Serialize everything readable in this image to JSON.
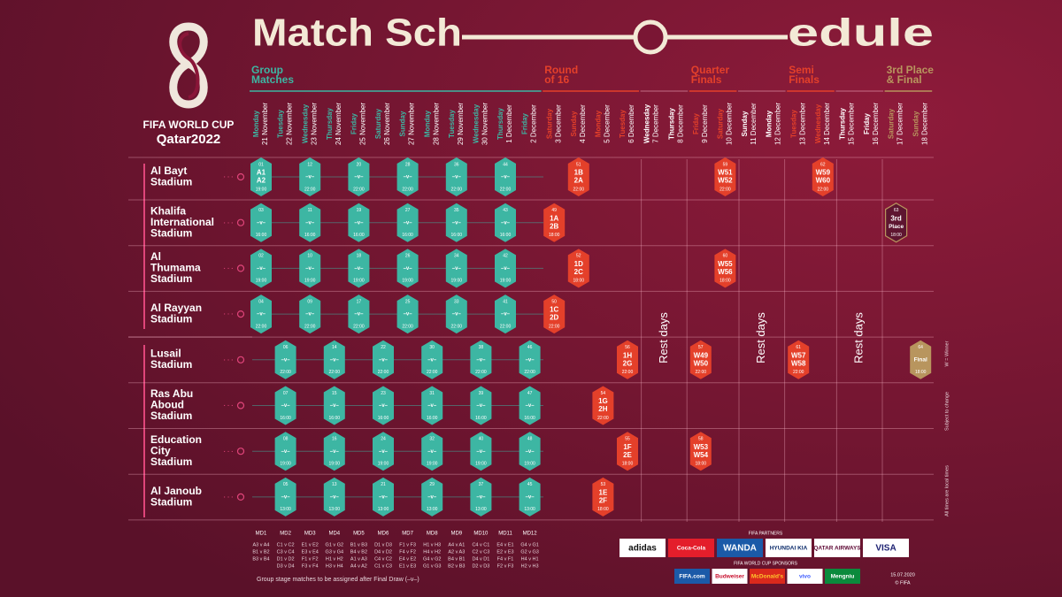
{
  "header": {
    "title_left": "Match Sch",
    "title_right": "edule",
    "logo_top": "FIFA WORLD CUP",
    "logo_bottom": "Qatar2022"
  },
  "stages": [
    {
      "name": [
        "Group",
        "Matches"
      ],
      "color": "#3db6a3",
      "days": [
        {
          "weekday": "Monday",
          "date": "21 November"
        },
        {
          "weekday": "Tuesday",
          "date": "22 November"
        },
        {
          "weekday": "Wednesday",
          "date": "23 November"
        },
        {
          "weekday": "Thursday",
          "date": "24 November"
        },
        {
          "weekday": "Friday",
          "date": "25 November"
        },
        {
          "weekday": "Saturday",
          "date": "26 November"
        },
        {
          "weekday": "Sunday",
          "date": "27 November"
        },
        {
          "weekday": "Monday",
          "date": "28 November"
        },
        {
          "weekday": "Tuesday",
          "date": "29 November"
        },
        {
          "weekday": "Wednesday",
          "date": "30 November"
        },
        {
          "weekday": "Thursday",
          "date": "1 December"
        },
        {
          "weekday": "Friday",
          "date": "2 December"
        }
      ]
    },
    {
      "name": [
        "Round",
        "of 16"
      ],
      "color": "#e4402a",
      "days": [
        {
          "weekday": "Saturday",
          "date": "3 December"
        },
        {
          "weekday": "Sunday",
          "date": "4 December"
        },
        {
          "weekday": "Monday",
          "date": "5 December"
        },
        {
          "weekday": "Tuesday",
          "date": "6 December"
        }
      ]
    },
    {
      "rest": "Rest days",
      "days": [
        {
          "weekday": "Wednesday",
          "date": "7 December"
        },
        {
          "weekday": "Thursday",
          "date": "8 December"
        }
      ]
    },
    {
      "name": [
        "Quarter",
        "Finals"
      ],
      "color": "#e4402a",
      "days": [
        {
          "weekday": "Friday",
          "date": "9 December"
        },
        {
          "weekday": "Saturday",
          "date": "10 December"
        }
      ]
    },
    {
      "rest": "Rest days",
      "days": [
        {
          "weekday": "Sunday",
          "date": "11 December"
        },
        {
          "weekday": "Monday",
          "date": "12 December"
        }
      ]
    },
    {
      "name": [
        "Semi",
        "Finals"
      ],
      "color": "#e4402a",
      "days": [
        {
          "weekday": "Tuesday",
          "date": "13 December"
        },
        {
          "weekday": "Wednesday",
          "date": "14 December"
        }
      ]
    },
    {
      "rest": "Rest days",
      "days": [
        {
          "weekday": "Thursday",
          "date": "15 December"
        },
        {
          "weekday": "Friday",
          "date": "16 December"
        }
      ]
    },
    {
      "name": [
        "3rd Place",
        "& Final"
      ],
      "color": "#b8955e",
      "days": [
        {
          "weekday": "Saturday",
          "date": "17 December"
        },
        {
          "weekday": "Sunday",
          "date": "18 December"
        }
      ]
    }
  ],
  "stadiums": [
    {
      "name": [
        "Al Bayt",
        "Stadium"
      ],
      "matches": [
        {
          "no": "01",
          "lines": [
            "A1",
            "A2"
          ],
          "time": "19:00"
        },
        null,
        {
          "no": "12",
          "lines": [
            "–v–"
          ],
          "time": "22:00"
        },
        null,
        {
          "no": "20",
          "lines": [
            "–v–"
          ],
          "time": "22:00"
        },
        null,
        {
          "no": "28",
          "lines": [
            "–v–"
          ],
          "time": "22:00"
        },
        null,
        {
          "no": "36",
          "lines": [
            "–v–"
          ],
          "time": "22:00"
        },
        null,
        {
          "no": "44",
          "lines": [
            "–v–"
          ],
          "time": "22:00"
        },
        null,
        null,
        {
          "no": "51",
          "lines": [
            "1B",
            "2A"
          ],
          "time": "22:00"
        },
        null,
        null,
        null,
        null,
        null,
        {
          "no": "59",
          "lines": [
            "W51",
            "W52"
          ],
          "time": "22:00"
        },
        null,
        null,
        null,
        {
          "no": "62",
          "lines": [
            "W59",
            "W60"
          ],
          "time": "22:00"
        },
        null,
        null,
        null,
        null
      ]
    },
    {
      "name": [
        "Khalifa",
        "International",
        "Stadium"
      ],
      "matches": [
        {
          "no": "03",
          "lines": [
            "–v–"
          ],
          "time": "16:00"
        },
        null,
        {
          "no": "11",
          "lines": [
            "–v–"
          ],
          "time": "16:00"
        },
        null,
        {
          "no": "19",
          "lines": [
            "–v–"
          ],
          "time": "16:00"
        },
        null,
        {
          "no": "27",
          "lines": [
            "–v–"
          ],
          "time": "16:00"
        },
        null,
        {
          "no": "35",
          "lines": [
            "–v–"
          ],
          "time": "16:00"
        },
        null,
        {
          "no": "43",
          "lines": [
            "–v–"
          ],
          "time": "16:00"
        },
        null,
        {
          "no": "49",
          "lines": [
            "1A",
            "2B"
          ],
          "time": "18:00"
        },
        null,
        null,
        null,
        null,
        null,
        null,
        null,
        null,
        null,
        null,
        null,
        null,
        null,
        {
          "no": "63",
          "lines": [
            "3rd",
            "Place"
          ],
          "time": "18:00",
          "color": "#5e1530"
        },
        null
      ]
    },
    {
      "name": [
        "Al",
        "Thumama",
        "Stadium"
      ],
      "matches": [
        {
          "no": "02",
          "lines": [
            "–v–"
          ],
          "time": "19:00"
        },
        null,
        {
          "no": "10",
          "lines": [
            "–v–"
          ],
          "time": "19:00"
        },
        null,
        {
          "no": "18",
          "lines": [
            "–v–"
          ],
          "time": "19:00"
        },
        null,
        {
          "no": "26",
          "lines": [
            "–v–"
          ],
          "time": "19:00"
        },
        null,
        {
          "no": "34",
          "lines": [
            "–v–"
          ],
          "time": "19:00"
        },
        null,
        {
          "no": "42",
          "lines": [
            "–v–"
          ],
          "time": "19:00"
        },
        null,
        null,
        {
          "no": "52",
          "lines": [
            "1D",
            "2C"
          ],
          "time": "18:00"
        },
        null,
        null,
        null,
        null,
        null,
        {
          "no": "60",
          "lines": [
            "W55",
            "W56"
          ],
          "time": "18:00"
        },
        null,
        null,
        null,
        null,
        null,
        null,
        null,
        null
      ]
    },
    {
      "name": [
        "Al Rayyan",
        "Stadium"
      ],
      "matches": [
        {
          "no": "04",
          "lines": [
            "–v–"
          ],
          "time": "22:00"
        },
        null,
        {
          "no": "09",
          "lines": [
            "–v–"
          ],
          "time": "22:00"
        },
        null,
        {
          "no": "17",
          "lines": [
            "–v–"
          ],
          "time": "22:00"
        },
        null,
        {
          "no": "25",
          "lines": [
            "–v–"
          ],
          "time": "22:00"
        },
        null,
        {
          "no": "33",
          "lines": [
            "–v–"
          ],
          "time": "22:00"
        },
        null,
        {
          "no": "41",
          "lines": [
            "–v–"
          ],
          "time": "22:00"
        },
        null,
        {
          "no": "50",
          "lines": [
            "1C",
            "2D"
          ],
          "time": "22:00"
        },
        null,
        null,
        null,
        null,
        null,
        null,
        null,
        null,
        null,
        null,
        null,
        null,
        null,
        null,
        null
      ]
    },
    {
      "name": [
        "Lusail",
        "Stadium"
      ],
      "matches": [
        null,
        {
          "no": "06",
          "lines": [
            "–v–"
          ],
          "time": "22:00"
        },
        null,
        {
          "no": "14",
          "lines": [
            "–v–"
          ],
          "time": "22:00"
        },
        null,
        {
          "no": "22",
          "lines": [
            "–v–"
          ],
          "time": "22:00"
        },
        null,
        {
          "no": "30",
          "lines": [
            "–v–"
          ],
          "time": "22:00"
        },
        null,
        {
          "no": "38",
          "lines": [
            "–v–"
          ],
          "time": "22:00"
        },
        null,
        {
          "no": "46",
          "lines": [
            "–v–"
          ],
          "time": "22:00"
        },
        null,
        null,
        null,
        {
          "no": "56",
          "lines": [
            "1H",
            "2G"
          ],
          "time": "22:00"
        },
        null,
        null,
        {
          "no": "57",
          "lines": [
            "W49",
            "W50"
          ],
          "time": "22:00"
        },
        null,
        null,
        null,
        {
          "no": "61",
          "lines": [
            "W57",
            "W58"
          ],
          "time": "22:00"
        },
        null,
        null,
        null,
        null,
        {
          "no": "64",
          "lines": [
            "Final"
          ],
          "time": "18:00"
        }
      ]
    },
    {
      "name": [
        "Ras Abu",
        "Aboud",
        "Stadium"
      ],
      "matches": [
        null,
        {
          "no": "07",
          "lines": [
            "–v–"
          ],
          "time": "16:00"
        },
        null,
        {
          "no": "15",
          "lines": [
            "–v–"
          ],
          "time": "16:00"
        },
        null,
        {
          "no": "23",
          "lines": [
            "–v–"
          ],
          "time": "16:00"
        },
        null,
        {
          "no": "31",
          "lines": [
            "–v–"
          ],
          "time": "16:00"
        },
        null,
        {
          "no": "39",
          "lines": [
            "–v–"
          ],
          "time": "16:00"
        },
        null,
        {
          "no": "47",
          "lines": [
            "–v–"
          ],
          "time": "16:00"
        },
        null,
        null,
        {
          "no": "54",
          "lines": [
            "1G",
            "2H"
          ],
          "time": "22:00"
        },
        null,
        null,
        null,
        null,
        null,
        null,
        null,
        null,
        null,
        null,
        null,
        null,
        null
      ]
    },
    {
      "name": [
        "Education",
        "City",
        "Stadium"
      ],
      "matches": [
        null,
        {
          "no": "08",
          "lines": [
            "–v–"
          ],
          "time": "19:00"
        },
        null,
        {
          "no": "16",
          "lines": [
            "–v–"
          ],
          "time": "19:00"
        },
        null,
        {
          "no": "24",
          "lines": [
            "–v–"
          ],
          "time": "19:00"
        },
        null,
        {
          "no": "32",
          "lines": [
            "–v–"
          ],
          "time": "19:00"
        },
        null,
        {
          "no": "40",
          "lines": [
            "–v–"
          ],
          "time": "19:00"
        },
        null,
        {
          "no": "48",
          "lines": [
            "–v–"
          ],
          "time": "19:00"
        },
        null,
        null,
        null,
        {
          "no": "55",
          "lines": [
            "1F",
            "2E"
          ],
          "time": "18:00"
        },
        null,
        null,
        {
          "no": "58",
          "lines": [
            "W53",
            "W54"
          ],
          "time": "18:00"
        },
        null,
        null,
        null,
        null,
        null,
        null,
        null,
        null,
        null
      ]
    },
    {
      "name": [
        "Al Janoub",
        "Stadium"
      ],
      "matches": [
        null,
        {
          "no": "05",
          "lines": [
            "–v–"
          ],
          "time": "13:00"
        },
        null,
        {
          "no": "13",
          "lines": [
            "–v–"
          ],
          "time": "13:00"
        },
        null,
        {
          "no": "21",
          "lines": [
            "–v–"
          ],
          "time": "13:00"
        },
        null,
        {
          "no": "29",
          "lines": [
            "–v–"
          ],
          "time": "13:00"
        },
        null,
        {
          "no": "37",
          "lines": [
            "–v–"
          ],
          "time": "13:00"
        },
        null,
        {
          "no": "45",
          "lines": [
            "–v–"
          ],
          "time": "13:00"
        },
        null,
        null,
        {
          "no": "53",
          "lines": [
            "1E",
            "2F"
          ],
          "time": "18:00"
        },
        null,
        null,
        null,
        null,
        null,
        null,
        null,
        null,
        null,
        null,
        null,
        null,
        null
      ]
    }
  ],
  "matchdays": [
    {
      "label": "MD1",
      "fixtures": [
        "A3 v A4",
        "B1 v B2",
        "B3 v B4"
      ]
    },
    {
      "label": "MD2",
      "fixtures": [
        "C1 v C2",
        "C3 v C4",
        "D1 v D2",
        "D3 v D4"
      ]
    },
    {
      "label": "MD3",
      "fixtures": [
        "E1 v E2",
        "E3 v E4",
        "F1 v F2",
        "F3 v F4"
      ]
    },
    {
      "label": "MD4",
      "fixtures": [
        "G1 v G2",
        "G3 v G4",
        "H1 v H2",
        "H3 v H4"
      ]
    },
    {
      "label": "MD5",
      "fixtures": [
        "B1 v B3",
        "B4 v B2",
        "A1 v A3",
        "A4 v A2"
      ]
    },
    {
      "label": "MD6",
      "fixtures": [
        "D1 v D3",
        "D4 v D2",
        "C4 v C2",
        "C1 v C3"
      ]
    },
    {
      "label": "MD7",
      "fixtures": [
        "F1 v F3",
        "F4 v F2",
        "E4 v E2",
        "E1 v E3"
      ]
    },
    {
      "label": "MD8",
      "fixtures": [
        "H1 v H3",
        "H4 v H2",
        "G4 v G2",
        "G1 v G3"
      ]
    },
    {
      "label": "MD9",
      "fixtures": [
        "A4 v A1",
        "A2 v A3",
        "B4 v B1",
        "B2 v B3"
      ]
    },
    {
      "label": "MD10",
      "fixtures": [
        "C4 v C1",
        "C2 v C3",
        "D4 v D1",
        "D2 v D3"
      ]
    },
    {
      "label": "MD11",
      "fixtures": [
        "E4 v E1",
        "E2 v E3",
        "F4 v F1",
        "F2 v F3"
      ]
    },
    {
      "label": "MD12",
      "fixtures": [
        "G4 v G1",
        "G2 v G3",
        "H4 v H1",
        "H2 v H3"
      ]
    }
  ],
  "footer": {
    "note": "Group stage matches to be assigned after Final Draw (–v–)",
    "partners_title": "FIFA PARTNERS",
    "partners": [
      {
        "name": "adidas",
        "bg": "#ffffff",
        "fg": "#111111"
      },
      {
        "name": "Coca-Cola",
        "bg": "#e41e2b",
        "fg": "#ffffff"
      },
      {
        "name": "WANDA",
        "bg": "#1b5aa8",
        "fg": "#ffffff"
      },
      {
        "name": "HYUNDAI KIA",
        "bg": "#ffffff",
        "fg": "#0c2c6b"
      },
      {
        "name": "QATAR AIRWAYS",
        "bg": "#ffffff",
        "fg": "#5c0632"
      },
      {
        "name": "VISA",
        "bg": "#ffffff",
        "fg": "#1a1f71"
      }
    ],
    "sponsors_title": "FIFA WORLD CUP SPONSORS",
    "sponsors": [
      {
        "name": "FIFA.com",
        "bg": "#1b5aa8",
        "fg": "#ffffff"
      },
      {
        "name": "Budweiser",
        "bg": "#ffffff",
        "fg": "#c8102e"
      },
      {
        "name": "McDonald's",
        "bg": "#da291c",
        "fg": "#ffc72c"
      },
      {
        "name": "vivo",
        "bg": "#ffffff",
        "fg": "#415fff"
      },
      {
        "name": "Mengniu",
        "bg": "#0b8a3c",
        "fg": "#ffffff"
      }
    ],
    "side_notes": [
      "W = Winner",
      "Subject to change",
      "All times are local times"
    ],
    "date": "15.07.2020",
    "copyright": "© FIFA"
  }
}
